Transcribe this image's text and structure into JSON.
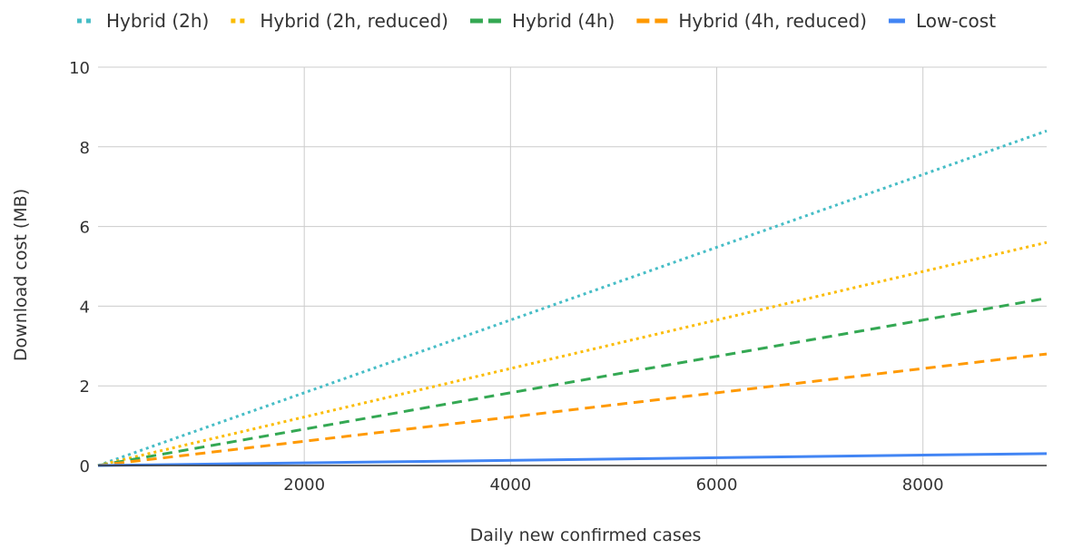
{
  "chart_data": {
    "type": "line",
    "title": "",
    "xlabel": "Daily new confirmed cases",
    "ylabel": "Download cost (MB)",
    "xlim": [
      0,
      9200
    ],
    "ylim": [
      0,
      10
    ],
    "x_ticks": [
      2000,
      4000,
      6000,
      8000
    ],
    "y_ticks": [
      0,
      2,
      4,
      6,
      8,
      10
    ],
    "grid": true,
    "legend_position": "top",
    "series": [
      {
        "name": "Hybrid (2h)",
        "color": "#46bdc6",
        "dash": "dotted",
        "x": [
          0,
          9200
        ],
        "y": [
          0,
          8.4
        ]
      },
      {
        "name": "Hybrid (2h, reduced)",
        "color": "#fbbc04",
        "dash": "dotted",
        "x": [
          0,
          9200
        ],
        "y": [
          0,
          5.6
        ]
      },
      {
        "name": "Hybrid (4h)",
        "color": "#34a853",
        "dash": "dashed",
        "x": [
          0,
          9200
        ],
        "y": [
          0,
          4.2
        ]
      },
      {
        "name": "Hybrid (4h, reduced)",
        "color": "#ff9900",
        "dash": "dashed",
        "x": [
          0,
          9200
        ],
        "y": [
          0,
          2.8
        ]
      },
      {
        "name": "Low-cost",
        "color": "#4285f4",
        "dash": "solid",
        "x": [
          0,
          9200
        ],
        "y": [
          0,
          0.3
        ]
      }
    ]
  }
}
